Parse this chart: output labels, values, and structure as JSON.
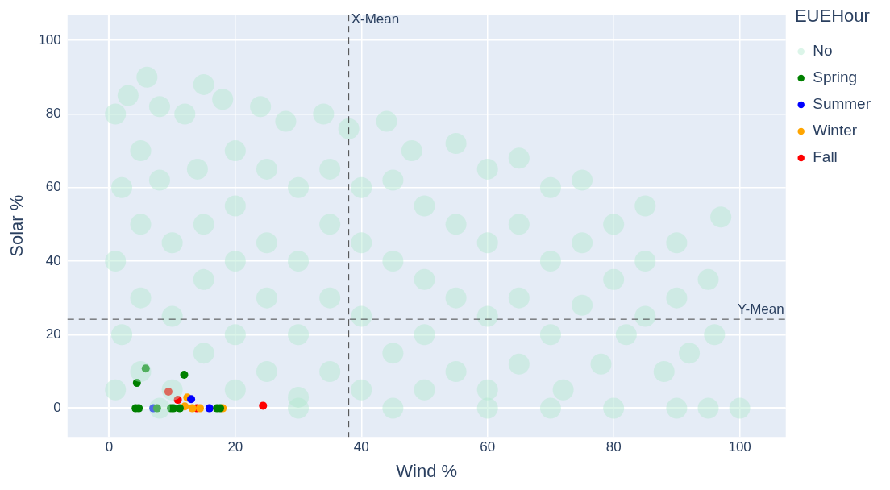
{
  "chart_data": {
    "type": "scatter",
    "xlabel": "Wind %",
    "ylabel": "Solar %",
    "legend_title": "EUEHour",
    "legend": "top right",
    "grid": true,
    "marker": "circle",
    "xlim": [
      -6.6,
      107.3
    ],
    "ylim": [
      -7.8,
      107
    ],
    "xticks": [
      0,
      20,
      40,
      60,
      80,
      100
    ],
    "yticks": [
      0,
      20,
      40,
      60,
      80,
      100
    ],
    "ref_lines": [
      {
        "axis": "x",
        "value": 38,
        "label": "X-Mean",
        "line_style": "dashed",
        "color": "#444444"
      },
      {
        "axis": "y",
        "value": 24.2,
        "label": "Y-Mean",
        "line_style": "dashed",
        "color": "#444444"
      }
    ],
    "series": [
      {
        "name": "No",
        "color": "#b2e8cf",
        "x": [
          1,
          2,
          1,
          2,
          1,
          3,
          5,
          5,
          5,
          5,
          8,
          8,
          10,
          10,
          10,
          12,
          14,
          15,
          15,
          15,
          18,
          20,
          20,
          20,
          20,
          20,
          24,
          25,
          25,
          25,
          25,
          28,
          30,
          30,
          30,
          30,
          34,
          35,
          35,
          35,
          35,
          38,
          40,
          40,
          40,
          40,
          44,
          45,
          45,
          45,
          48,
          50,
          50,
          50,
          50,
          55,
          55,
          55,
          55,
          60,
          60,
          60,
          60,
          65,
          65,
          65,
          65,
          70,
          70,
          70,
          72,
          75,
          75,
          75,
          78,
          80,
          80,
          82,
          85,
          85,
          85,
          88,
          90,
          90,
          92,
          95,
          96,
          97,
          60,
          70,
          80,
          90,
          95,
          100,
          8,
          30,
          45,
          6,
          15
        ],
        "values": [
          80,
          60,
          40,
          20,
          5,
          85,
          70,
          50,
          30,
          10,
          82,
          62,
          45,
          25,
          5,
          80,
          65,
          50,
          35,
          15,
          84,
          70,
          55,
          40,
          20,
          5,
          82,
          65,
          45,
          30,
          10,
          78,
          60,
          40,
          20,
          3,
          80,
          65,
          50,
          30,
          10,
          76,
          60,
          45,
          25,
          5,
          78,
          62,
          40,
          15,
          70,
          55,
          35,
          20,
          5,
          72,
          50,
          30,
          10,
          65,
          45,
          25,
          5,
          68,
          50,
          30,
          12,
          60,
          40,
          20,
          5,
          62,
          45,
          28,
          12,
          50,
          35,
          20,
          55,
          40,
          25,
          10,
          45,
          30,
          15,
          35,
          20,
          52,
          0,
          0,
          0,
          0,
          0,
          0,
          0,
          0,
          0,
          90,
          88
        ]
      },
      {
        "name": "Spring",
        "color": "#008000",
        "x": [
          5.8,
          4.4,
          11.9,
          4.2,
          4.7,
          7.6,
          9.8,
          10.2,
          11.2,
          17.1,
          17.6
        ],
        "values": [
          10.8,
          6.9,
          9.1,
          0,
          0,
          0,
          0,
          0,
          0,
          0,
          0
        ]
      },
      {
        "name": "Summer",
        "color": "#0000ff",
        "x": [
          7.0,
          13.0,
          15.9
        ],
        "values": [
          0,
          2.5,
          0
        ]
      },
      {
        "name": "Winter",
        "color": "#ffa500",
        "x": [
          12.4,
          12.0,
          13.2,
          14.4,
          18.0
        ],
        "values": [
          2.9,
          0.5,
          0,
          0,
          0
        ]
      },
      {
        "name": "Fall",
        "color": "#ff0000",
        "x": [
          9.4,
          10.9,
          13.9,
          24.4
        ],
        "values": [
          4.5,
          2.3,
          0,
          0.7
        ]
      }
    ]
  }
}
